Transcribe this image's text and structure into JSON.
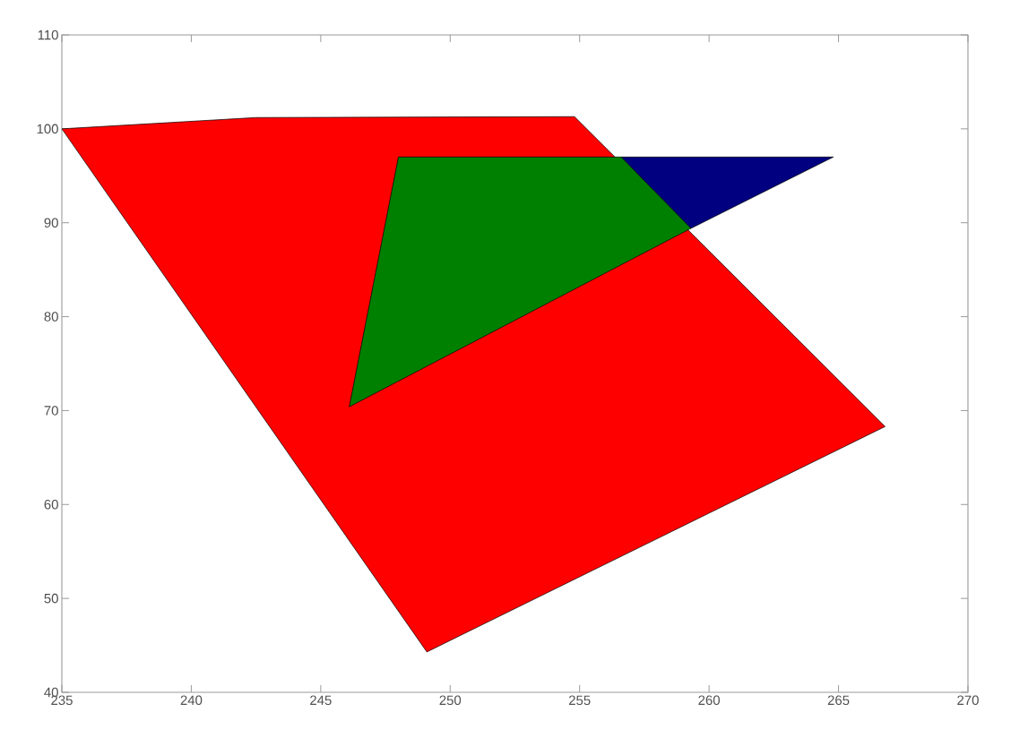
{
  "chart_data": {
    "type": "area",
    "xlim": [
      235,
      270
    ],
    "ylim": [
      40,
      110
    ],
    "xticks": [
      235,
      240,
      245,
      250,
      255,
      260,
      265,
      270
    ],
    "yticks": [
      40,
      50,
      60,
      70,
      80,
      90,
      100,
      110
    ],
    "series": [
      {
        "color": "#ff0000",
        "x": [
          235.0,
          242.5,
          254.8,
          266.8,
          249.1
        ],
        "values": [
          100.0,
          101.2,
          101.3,
          68.3,
          44.3
        ]
      },
      {
        "color": "#000080",
        "x": [
          256.6,
          264.8,
          259.3
        ],
        "values": [
          97.0,
          97.0,
          89.4
        ]
      },
      {
        "color": "#008000",
        "x": [
          248.0,
          256.6,
          259.3,
          246.1
        ],
        "values": [
          97.0,
          97.0,
          89.4,
          70.4
        ]
      }
    ]
  }
}
